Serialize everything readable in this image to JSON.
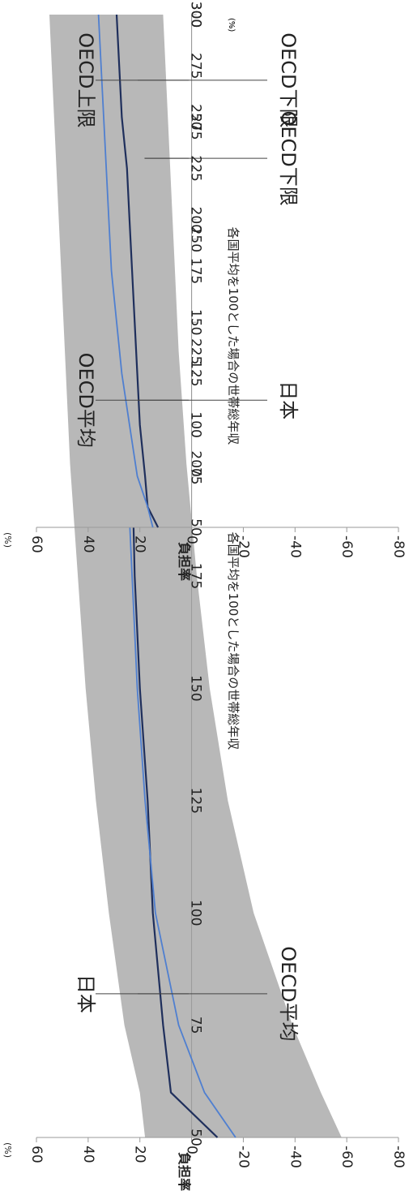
{
  "colors": {
    "band": "#b8b8b8",
    "japan": "#1f2f5c",
    "oecd_avg": "#4f7fd0",
    "axis": "#9a9a9a",
    "text": "#222222"
  },
  "chart_data": [
    {
      "type": "area",
      "orientation": "rotated-90-clockwise",
      "xlabel": "各国平均を100とした場合の世帯総年収",
      "x_unit": "(%)",
      "ylabel": "負担率",
      "y_unit": "(%)",
      "xlim": [
        50,
        300
      ],
      "ylim": [
        -80,
        60
      ],
      "x_ticks": [
        "50",
        "75",
        "100",
        "125",
        "150",
        "175",
        "200",
        "225",
        "250",
        "275",
        "300"
      ],
      "y_ticks": [
        "60",
        "40",
        "20",
        "0",
        "-20",
        "-40",
        "-60",
        "-80"
      ],
      "grid": false,
      "x": [
        50,
        60,
        75,
        100,
        125,
        150,
        175,
        200,
        225,
        250,
        275,
        300
      ],
      "series": [
        {
          "name": "OECD上限",
          "role": "band-upper",
          "values": [
            18,
            20,
            26,
            32,
            37,
            41,
            44,
            47,
            49,
            51,
            53,
            55
          ]
        },
        {
          "name": "OECD下限",
          "role": "band-lower",
          "values": [
            -58,
            -50,
            -39,
            -24,
            -14,
            -7,
            -2,
            2,
            5,
            7,
            9,
            11
          ]
        },
        {
          "name": "日本",
          "role": "line",
          "values": [
            -10,
            8,
            11,
            15,
            17,
            20,
            22,
            23,
            27,
            28,
            29,
            30
          ]
        },
        {
          "name": "OECD平均",
          "role": "line",
          "values": [
            -17,
            -5,
            5,
            14,
            18,
            21,
            23,
            25,
            27,
            28,
            29,
            30
          ]
        }
      ],
      "annotations": [
        {
          "text": "日本",
          "x": 82,
          "side": "upper"
        },
        {
          "text": "OECD平均",
          "x": 82,
          "side": "lower"
        },
        {
          "text": "OECD上限",
          "x": 268,
          "side": "upper"
        },
        {
          "text": "OECD下限",
          "x": 268,
          "side": "lower"
        }
      ]
    },
    {
      "type": "area",
      "orientation": "rotated-90-clockwise",
      "xlabel": "各国平均を100とした場合の世帯総年収",
      "x_unit": "(%)",
      "ylabel": "負担率",
      "y_unit": "(%)",
      "xlim": [
        50,
        300
      ],
      "ylim": [
        -80,
        60
      ],
      "x_ticks": [
        "50",
        "75",
        "100",
        "125",
        "150",
        "175",
        "200",
        "225",
        "250",
        "275",
        "300"
      ],
      "y_ticks": [
        "60",
        "40",
        "20",
        "0",
        "-20",
        "-40",
        "-60",
        "-80"
      ],
      "grid": false,
      "x": [
        50,
        55,
        60,
        75,
        100,
        125,
        150,
        175,
        200,
        225,
        250,
        275,
        300
      ],
      "series": [
        {
          "name": "OECD上限",
          "role": "band-upper",
          "values": [
            33,
            33,
            33,
            34,
            37,
            40,
            43,
            45,
            47,
            48,
            50,
            51,
            52
          ]
        },
        {
          "name": "OECD下限",
          "role": "band-lower",
          "values": [
            0,
            4,
            9,
            13,
            14,
            15,
            16,
            17,
            18,
            18,
            19,
            20,
            20
          ]
        },
        {
          "name": "日本",
          "role": "line",
          "values": [
            13,
            15,
            17,
            18,
            20,
            21,
            22,
            23,
            24,
            25,
            27,
            28,
            29
          ]
        },
        {
          "name": "OECD平均",
          "role": "line",
          "values": [
            15,
            16,
            17,
            21,
            24,
            27,
            29,
            31,
            32,
            33,
            34,
            35,
            36
          ]
        }
      ],
      "annotations": [
        {
          "text": "OECD平均",
          "x": 112,
          "side": "upper"
        },
        {
          "text": "日本",
          "x": 112,
          "side": "lower"
        },
        {
          "text": "OECD上限",
          "x": 268,
          "side": "upper"
        },
        {
          "text": "OECD下限",
          "x": 268,
          "side": "lower"
        }
      ]
    }
  ]
}
